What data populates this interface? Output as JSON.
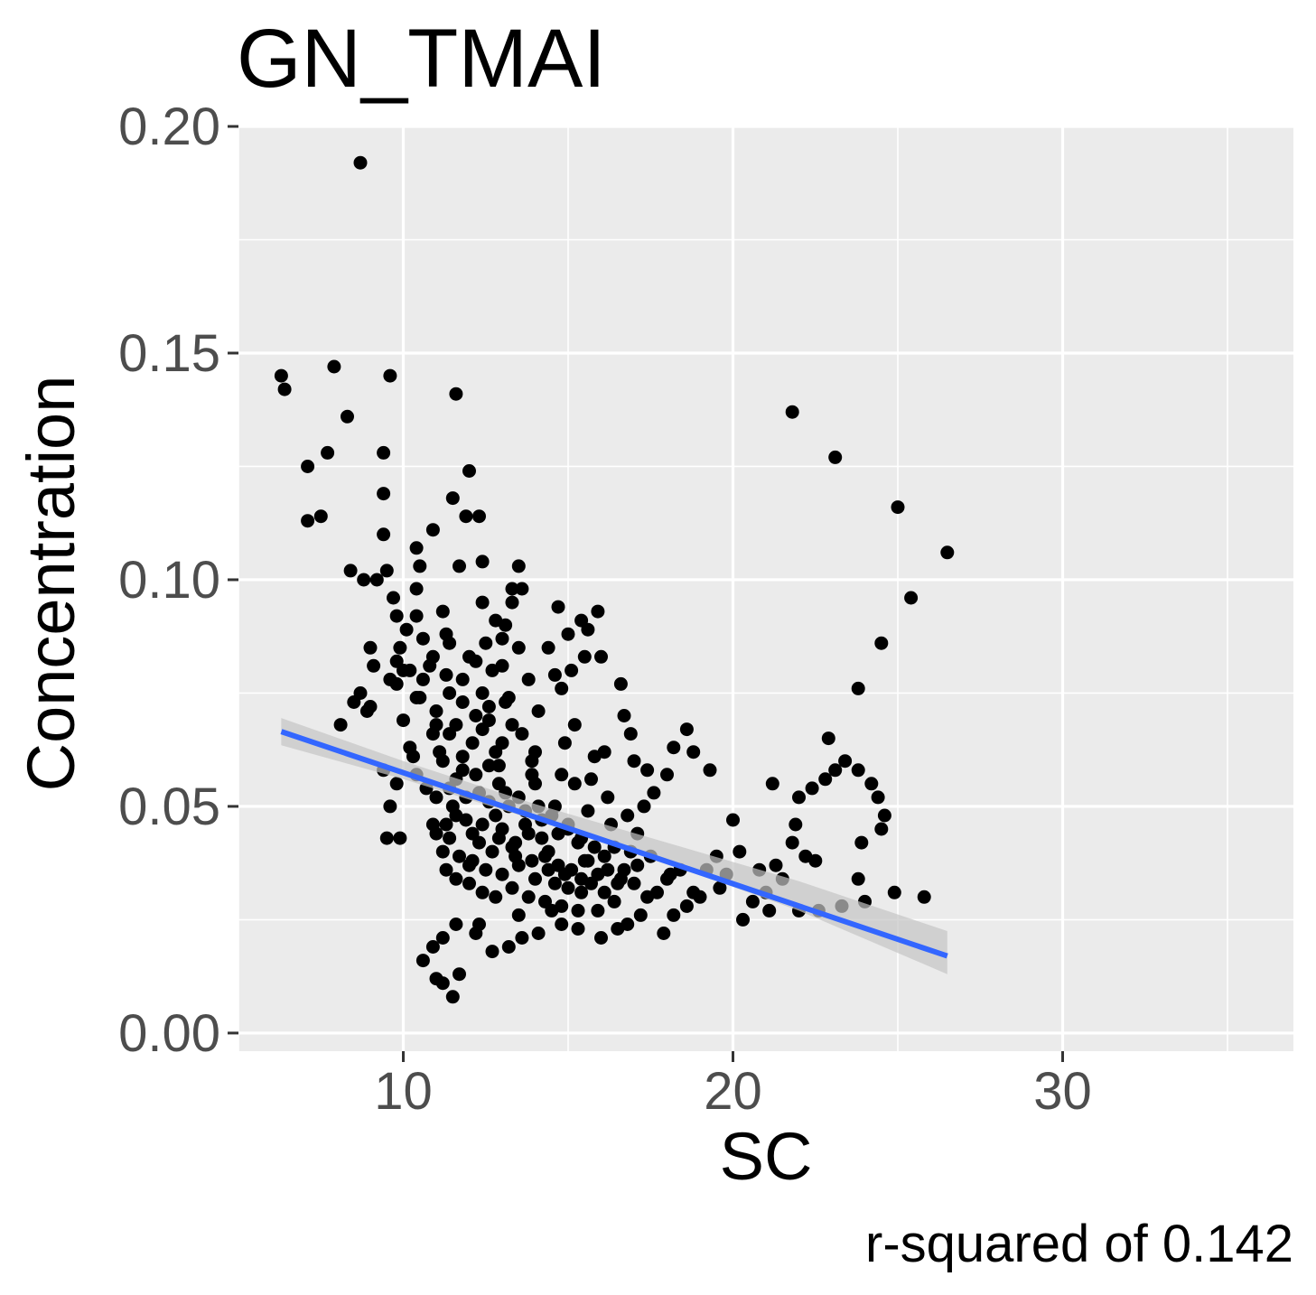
{
  "chart_data": {
    "type": "scatter",
    "title": "GN_TMAI",
    "xlabel": "SC",
    "ylabel": "Concentration",
    "caption": "r-squared of  0.142",
    "xlim": [
      5,
      37
    ],
    "ylim": [
      -0.004,
      0.2
    ],
    "x_ticks": [
      10,
      20,
      30
    ],
    "x_tick_labels": [
      "10",
      "20",
      "30"
    ],
    "y_ticks": [
      0.0,
      0.05,
      0.1,
      0.15,
      0.2
    ],
    "y_tick_labels": [
      "0.00",
      "0.05",
      "0.10",
      "0.15",
      "0.20"
    ],
    "grid": true,
    "legend": "none",
    "colors": {
      "panel": "#ebebeb",
      "grid": "#ffffff",
      "points": "#000000",
      "fit_line": "#3366ff",
      "ribbon": "#c4c4c4"
    },
    "points": [
      [
        6.3,
        0.145
      ],
      [
        6.4,
        0.142
      ],
      [
        7.9,
        0.147
      ],
      [
        8.3,
        0.136
      ],
      [
        8.7,
        0.192
      ],
      [
        9.6,
        0.145
      ],
      [
        11.6,
        0.141
      ],
      [
        21.8,
        0.137
      ],
      [
        23.1,
        0.127
      ],
      [
        25.0,
        0.116
      ],
      [
        26.5,
        0.106
      ],
      [
        25.4,
        0.096
      ],
      [
        24.5,
        0.086
      ],
      [
        23.8,
        0.076
      ],
      [
        7.7,
        0.128
      ],
      [
        9.4,
        0.128
      ],
      [
        7.1,
        0.125
      ],
      [
        12.0,
        0.124
      ],
      [
        9.4,
        0.119
      ],
      [
        11.5,
        0.118
      ],
      [
        7.1,
        0.113
      ],
      [
        7.5,
        0.114
      ],
      [
        11.9,
        0.114
      ],
      [
        12.3,
        0.114
      ],
      [
        9.4,
        0.11
      ],
      [
        10.9,
        0.111
      ],
      [
        10.4,
        0.107
      ],
      [
        8.4,
        0.102
      ],
      [
        9.5,
        0.102
      ],
      [
        11.7,
        0.103
      ],
      [
        12.4,
        0.104
      ],
      [
        13.5,
        0.103
      ],
      [
        8.8,
        0.1
      ],
      [
        9.2,
        0.1
      ],
      [
        10.5,
        0.103
      ],
      [
        13.3,
        0.098
      ],
      [
        10.4,
        0.098
      ],
      [
        9.7,
        0.096
      ],
      [
        12.4,
        0.095
      ],
      [
        11.2,
        0.093
      ],
      [
        13.1,
        0.09
      ],
      [
        15.9,
        0.093
      ],
      [
        14.7,
        0.094
      ],
      [
        15.4,
        0.091
      ],
      [
        15.0,
        0.088
      ],
      [
        15.6,
        0.089
      ],
      [
        13.0,
        0.087
      ],
      [
        9.8,
        0.092
      ],
      [
        10.1,
        0.089
      ],
      [
        11.4,
        0.086
      ],
      [
        10.6,
        0.087
      ],
      [
        9.0,
        0.085
      ],
      [
        13.5,
        0.085
      ],
      [
        14.4,
        0.085
      ],
      [
        12.5,
        0.086
      ],
      [
        12.0,
        0.083
      ],
      [
        16.0,
        0.083
      ],
      [
        15.5,
        0.083
      ],
      [
        9.8,
        0.082
      ],
      [
        10.9,
        0.083
      ],
      [
        9.1,
        0.081
      ],
      [
        13.0,
        0.081
      ],
      [
        14.6,
        0.079
      ],
      [
        15.1,
        0.08
      ],
      [
        12.7,
        0.08
      ],
      [
        13.8,
        0.078
      ],
      [
        16.6,
        0.077
      ],
      [
        11.3,
        0.079
      ],
      [
        10.2,
        0.08
      ],
      [
        9.6,
        0.078
      ],
      [
        14.8,
        0.076
      ],
      [
        12.4,
        0.075
      ],
      [
        13.2,
        0.074
      ],
      [
        11.8,
        0.073
      ],
      [
        10.5,
        0.074
      ],
      [
        8.7,
        0.075
      ],
      [
        9.0,
        0.072
      ],
      [
        16.7,
        0.07
      ],
      [
        16.9,
        0.066
      ],
      [
        14.1,
        0.071
      ],
      [
        12.2,
        0.07
      ],
      [
        8.5,
        0.073
      ],
      [
        8.9,
        0.071
      ],
      [
        10.0,
        0.069
      ],
      [
        11.0,
        0.068
      ],
      [
        12.6,
        0.069
      ],
      [
        15.2,
        0.068
      ],
      [
        8.1,
        0.068
      ],
      [
        13.6,
        0.066
      ],
      [
        11.4,
        0.066
      ],
      [
        18.6,
        0.067
      ],
      [
        18.2,
        0.063
      ],
      [
        18.8,
        0.062
      ],
      [
        17.4,
        0.058
      ],
      [
        19.3,
        0.058
      ],
      [
        17.0,
        0.06
      ],
      [
        16.1,
        0.062
      ],
      [
        14.9,
        0.064
      ],
      [
        15.8,
        0.061
      ],
      [
        12.8,
        0.062
      ],
      [
        13.9,
        0.06
      ],
      [
        11.2,
        0.06
      ],
      [
        10.3,
        0.061
      ],
      [
        9.4,
        0.058
      ],
      [
        9.8,
        0.055
      ],
      [
        21.2,
        0.055
      ],
      [
        22.0,
        0.052
      ],
      [
        22.4,
        0.054
      ],
      [
        22.8,
        0.056
      ],
      [
        23.1,
        0.058
      ],
      [
        23.4,
        0.06
      ],
      [
        23.8,
        0.058
      ],
      [
        24.2,
        0.055
      ],
      [
        24.4,
        0.052
      ],
      [
        24.6,
        0.048
      ],
      [
        24.5,
        0.045
      ],
      [
        23.9,
        0.042
      ],
      [
        23.8,
        0.034
      ],
      [
        24.0,
        0.029
      ],
      [
        24.9,
        0.031
      ],
      [
        25.8,
        0.03
      ],
      [
        22.9,
        0.065
      ],
      [
        18.0,
        0.057
      ],
      [
        17.6,
        0.053
      ],
      [
        16.2,
        0.052
      ],
      [
        15.7,
        0.056
      ],
      [
        14.8,
        0.057
      ],
      [
        14.0,
        0.055
      ],
      [
        12.9,
        0.055
      ],
      [
        11.6,
        0.056
      ],
      [
        10.4,
        0.057
      ],
      [
        9.6,
        0.05
      ],
      [
        9.5,
        0.043
      ],
      [
        9.9,
        0.043
      ],
      [
        10.9,
        0.046
      ],
      [
        11.4,
        0.043
      ],
      [
        12.1,
        0.044
      ],
      [
        13.0,
        0.045
      ],
      [
        14.2,
        0.043
      ],
      [
        15.0,
        0.046
      ],
      [
        16.3,
        0.046
      ],
      [
        17.1,
        0.044
      ],
      [
        17.3,
        0.05
      ],
      [
        20.0,
        0.047
      ],
      [
        20.2,
        0.04
      ],
      [
        19.5,
        0.039
      ],
      [
        19.2,
        0.036
      ],
      [
        20.8,
        0.036
      ],
      [
        21.3,
        0.037
      ],
      [
        21.8,
        0.042
      ],
      [
        21.9,
        0.046
      ],
      [
        22.2,
        0.039
      ],
      [
        22.5,
        0.038
      ],
      [
        21.5,
        0.034
      ],
      [
        21.0,
        0.031
      ],
      [
        20.6,
        0.029
      ],
      [
        20.3,
        0.025
      ],
      [
        21.1,
        0.027
      ],
      [
        22.0,
        0.027
      ],
      [
        22.6,
        0.027
      ],
      [
        23.3,
        0.028
      ],
      [
        19.0,
        0.03
      ],
      [
        18.6,
        0.028
      ],
      [
        18.2,
        0.026
      ],
      [
        17.9,
        0.022
      ],
      [
        17.2,
        0.026
      ],
      [
        16.8,
        0.024
      ],
      [
        16.5,
        0.023
      ],
      [
        16.0,
        0.021
      ],
      [
        15.3,
        0.023
      ],
      [
        14.8,
        0.024
      ],
      [
        14.1,
        0.022
      ],
      [
        13.6,
        0.021
      ],
      [
        13.2,
        0.019
      ],
      [
        12.7,
        0.018
      ],
      [
        12.2,
        0.022
      ],
      [
        11.6,
        0.024
      ],
      [
        11.2,
        0.021
      ],
      [
        10.9,
        0.019
      ],
      [
        10.6,
        0.016
      ],
      [
        11.0,
        0.012
      ],
      [
        11.2,
        0.011
      ],
      [
        11.7,
        0.013
      ],
      [
        11.5,
        0.008
      ],
      [
        12.3,
        0.024
      ],
      [
        13.5,
        0.026
      ],
      [
        14.5,
        0.027
      ],
      [
        15.9,
        0.027
      ],
      [
        16.4,
        0.029
      ],
      [
        17.7,
        0.031
      ],
      [
        18.8,
        0.031
      ],
      [
        19.6,
        0.032
      ],
      [
        17.1,
        0.037
      ],
      [
        18.4,
        0.036
      ],
      [
        19.8,
        0.035
      ],
      [
        18.0,
        0.034
      ],
      [
        16.7,
        0.036
      ],
      [
        15.5,
        0.038
      ],
      [
        14.4,
        0.04
      ],
      [
        13.3,
        0.041
      ],
      [
        12.3,
        0.042
      ],
      [
        11.6,
        0.048
      ],
      [
        12.6,
        0.051
      ],
      [
        13.7,
        0.049
      ],
      [
        14.6,
        0.05
      ],
      [
        15.6,
        0.049
      ],
      [
        16.8,
        0.048
      ],
      [
        11.0,
        0.052
      ],
      [
        10.7,
        0.054
      ],
      [
        11.8,
        0.058
      ],
      [
        12.9,
        0.059
      ],
      [
        13.9,
        0.057
      ],
      [
        15.2,
        0.055
      ],
      [
        10.2,
        0.063
      ],
      [
        11.1,
        0.062
      ],
      [
        12.1,
        0.064
      ],
      [
        13.0,
        0.064
      ],
      [
        14.0,
        0.062
      ],
      [
        10.9,
        0.066
      ],
      [
        11.6,
        0.068
      ],
      [
        12.4,
        0.067
      ],
      [
        13.3,
        0.068
      ],
      [
        11.0,
        0.071
      ],
      [
        12.6,
        0.072
      ],
      [
        13.1,
        0.073
      ],
      [
        10.4,
        0.074
      ],
      [
        11.4,
        0.075
      ],
      [
        9.8,
        0.077
      ],
      [
        10.6,
        0.078
      ],
      [
        11.8,
        0.078
      ],
      [
        10.0,
        0.08
      ],
      [
        10.8,
        0.081
      ],
      [
        12.2,
        0.082
      ],
      [
        9.9,
        0.085
      ],
      [
        11.3,
        0.088
      ],
      [
        12.8,
        0.091
      ],
      [
        13.3,
        0.095
      ],
      [
        13.6,
        0.098
      ],
      [
        10.4,
        0.092
      ],
      [
        11.5,
        0.05
      ],
      [
        11.9,
        0.047
      ],
      [
        12.4,
        0.046
      ],
      [
        12.9,
        0.043
      ],
      [
        13.4,
        0.042
      ],
      [
        13.8,
        0.044
      ],
      [
        14.3,
        0.039
      ],
      [
        14.7,
        0.037
      ],
      [
        15.1,
        0.036
      ],
      [
        15.6,
        0.038
      ],
      [
        16.1,
        0.039
      ],
      [
        11.2,
        0.04
      ],
      [
        11.7,
        0.039
      ],
      [
        12.1,
        0.038
      ],
      [
        12.5,
        0.036
      ],
      [
        13.0,
        0.035
      ],
      [
        13.5,
        0.037
      ],
      [
        14.0,
        0.034
      ],
      [
        14.6,
        0.033
      ],
      [
        15.0,
        0.032
      ],
      [
        15.4,
        0.031
      ],
      [
        11.0,
        0.044
      ],
      [
        11.3,
        0.046
      ],
      [
        11.9,
        0.052
      ],
      [
        12.3,
        0.053
      ],
      [
        12.8,
        0.048
      ],
      [
        13.2,
        0.05
      ],
      [
        13.7,
        0.046
      ],
      [
        14.2,
        0.047
      ],
      [
        14.7,
        0.044
      ],
      [
        15.3,
        0.042
      ],
      [
        16.4,
        0.041
      ],
      [
        16.9,
        0.04
      ],
      [
        17.5,
        0.039
      ],
      [
        18.1,
        0.035
      ],
      [
        11.4,
        0.054
      ],
      [
        11.8,
        0.061
      ],
      [
        12.2,
        0.057
      ],
      [
        12.6,
        0.059
      ],
      [
        13.1,
        0.053
      ],
      [
        13.5,
        0.052
      ],
      [
        14.1,
        0.05
      ],
      [
        14.5,
        0.048
      ],
      [
        15.0,
        0.045
      ],
      [
        15.4,
        0.043
      ],
      [
        15.8,
        0.041
      ],
      [
        16.2,
        0.036
      ],
      [
        16.6,
        0.034
      ],
      [
        17.0,
        0.033
      ],
      [
        17.4,
        0.03
      ],
      [
        12.0,
        0.033
      ],
      [
        12.4,
        0.031
      ],
      [
        12.8,
        0.03
      ],
      [
        13.3,
        0.032
      ],
      [
        13.8,
        0.03
      ],
      [
        14.3,
        0.029
      ],
      [
        14.8,
        0.028
      ],
      [
        15.3,
        0.027
      ],
      [
        15.7,
        0.033
      ],
      [
        16.1,
        0.031
      ],
      [
        11.3,
        0.036
      ],
      [
        11.6,
        0.034
      ],
      [
        12.0,
        0.037
      ],
      [
        12.7,
        0.04
      ],
      [
        13.4,
        0.039
      ],
      [
        13.9,
        0.038
      ],
      [
        14.4,
        0.036
      ],
      [
        14.9,
        0.035
      ],
      [
        15.4,
        0.034
      ],
      [
        15.9,
        0.035
      ],
      [
        16.5,
        0.033
      ]
    ],
    "fit_line": {
      "x": [
        6.3,
        26.5
      ],
      "y": [
        0.0665,
        0.017
      ]
    },
    "ribbon": {
      "x": [
        6.3,
        10.0,
        14.0,
        18.0,
        22.0,
        26.5
      ],
      "upper": [
        0.0695,
        0.06,
        0.0505,
        0.042,
        0.0335,
        0.0225
      ],
      "lower": [
        0.0635,
        0.056,
        0.047,
        0.0375,
        0.027,
        0.013
      ]
    }
  }
}
